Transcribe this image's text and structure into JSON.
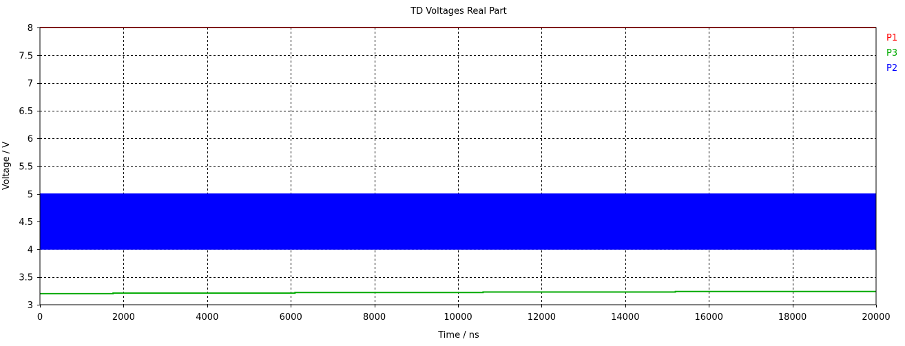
{
  "chart_data": {
    "type": "line",
    "title": "TD Voltages Real Part",
    "xlabel": "Time / ns",
    "ylabel": "Voltage / V",
    "xlim": [
      0,
      20000
    ],
    "ylim": [
      3,
      8
    ],
    "x_ticks": [
      0,
      2000,
      4000,
      6000,
      8000,
      10000,
      12000,
      14000,
      16000,
      18000,
      20000
    ],
    "x_tick_labels": [
      "0",
      "2000",
      "4000",
      "6000",
      "8000",
      "10000",
      "12000",
      "14000",
      "16000",
      "18000",
      "20000"
    ],
    "y_ticks": [
      3,
      3.5,
      4,
      4.5,
      5,
      5.5,
      6,
      6.5,
      7,
      7.5,
      8
    ],
    "y_tick_labels": [
      "3",
      "3.5",
      "4",
      "4.5",
      "5",
      "5.5",
      "6",
      "6.5",
      "7",
      "7.5",
      "8"
    ],
    "grid": true,
    "legend_placement": "right",
    "series": [
      {
        "name": "P1",
        "color": "#ff0000",
        "x": [
          0,
          20000
        ],
        "y": [
          8,
          8
        ]
      },
      {
        "name": "P3",
        "color": "#00aa00",
        "x": [
          0,
          1750,
          1750,
          6100,
          6100,
          10600,
          10600,
          15200,
          15200,
          20000
        ],
        "y": [
          3.2,
          3.2,
          3.21,
          3.21,
          3.22,
          3.22,
          3.23,
          3.23,
          3.24,
          3.24
        ]
      },
      {
        "name": "P2",
        "color": "#0000ff",
        "style": "rapid oscillation between min and max",
        "x": [
          0,
          20000
        ],
        "y_min": [
          4,
          4
        ],
        "y_max": [
          5,
          5
        ]
      }
    ]
  }
}
